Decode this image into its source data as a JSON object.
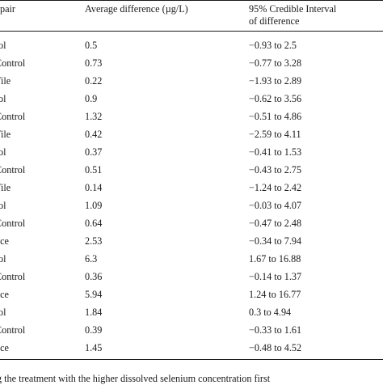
{
  "table": {
    "headers": {
      "pair": "pair",
      "avg": "Average difference (µg/L)",
      "ci_line1": "95% Credible Interval",
      "ci_line2": "of difference"
    },
    "rows": [
      {
        "pair": "rol",
        "avg": "0.5",
        "ci": "−0.93 to 2.5"
      },
      {
        "pair": "Control",
        "avg": "0.73",
        "ci": "−0.77 to 3.28"
      },
      {
        "pair": "Tile",
        "avg": "0.22",
        "ci": "−1.93 to 2.89"
      },
      {
        "pair": "rol",
        "avg": "0.9",
        "ci": "−0.62 to 3.56"
      },
      {
        "pair": "Control",
        "avg": "1.32",
        "ci": "−0.51 to 4.86"
      },
      {
        "pair": "Tile",
        "avg": "0.42",
        "ci": "−2.59 to 4.11"
      },
      {
        "pair": "rol",
        "avg": "0.37",
        "ci": "−0.41 to 1.53"
      },
      {
        "pair": "Control",
        "avg": "0.51",
        "ci": "−0.43 to 2.75"
      },
      {
        "pair": "Tile",
        "avg": "0.14",
        "ci": "−1.24 to 2.42"
      },
      {
        "pair": "rol",
        "avg": "1.09",
        "ci": "−0.03 to 4.07"
      },
      {
        "pair": "Control",
        "avg": "0.64",
        "ci": "−0.47 to 2.48"
      },
      {
        "pair": "uce",
        "avg": "2.53",
        "ci": "−0.34 to 7.94"
      },
      {
        "pair": "rol",
        "avg": "6.3",
        "ci": "1.67 to 16.88"
      },
      {
        "pair": "Control",
        "avg": "0.36",
        "ci": "−0.14 to 1.37"
      },
      {
        "pair": "uce",
        "avg": "5.94",
        "ci": "1.24 to 16.77"
      },
      {
        "pair": "rol",
        "avg": "1.84",
        "ci": "0.3 to 4.94"
      },
      {
        "pair": "Control",
        "avg": "0.39",
        "ci": "−0.33 to 1.61"
      },
      {
        "pair": "uce",
        "avg": "1.45",
        "ci": "−0.48 to 4.52"
      }
    ]
  },
  "footnote": "g the treatment with the higher dissolved selenium concentration first"
}
